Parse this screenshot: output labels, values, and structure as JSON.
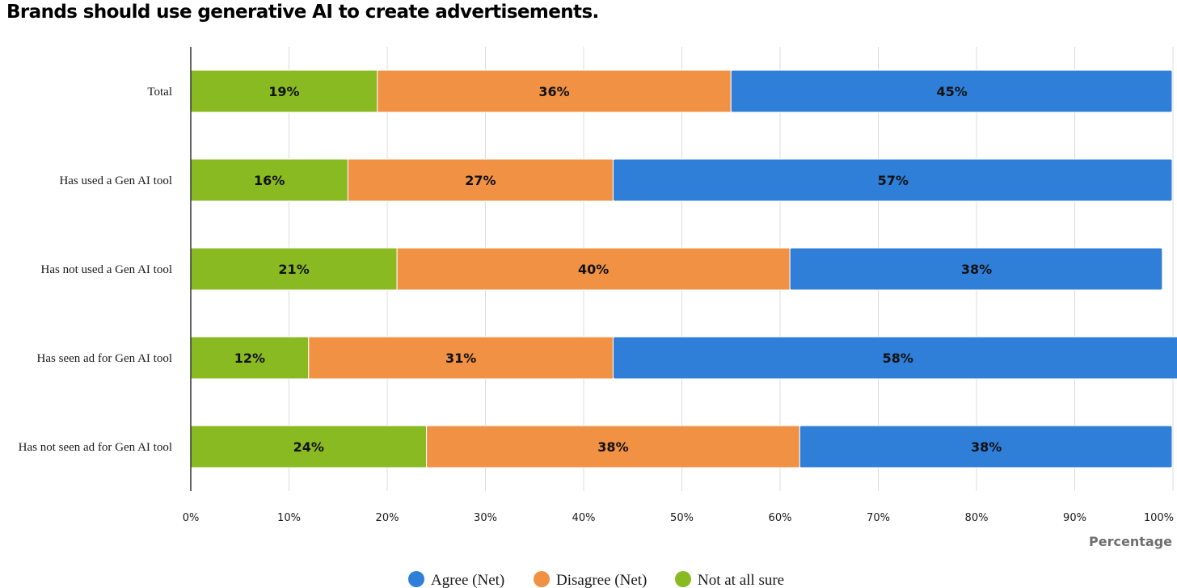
{
  "title": "Brands should use generative AI to create advertisements.",
  "chart_data": {
    "type": "bar",
    "orientation": "horizontal",
    "stacked": true,
    "title": "Brands should use generative AI to create advertisements.",
    "xlabel": "Percentage",
    "ylabel": "",
    "xlim": [
      0,
      100
    ],
    "x_ticks": [
      "0%",
      "10%",
      "20%",
      "30%",
      "40%",
      "50%",
      "60%",
      "70%",
      "80%",
      "90%",
      "100%"
    ],
    "categories": [
      "Total",
      "Has used a Gen AI tool",
      "Has not used a Gen AI tool",
      "Has seen ad for Gen AI tool",
      "Has not seen ad for Gen AI tool"
    ],
    "series": [
      {
        "name": "Not at all sure",
        "color": "#8aba22",
        "values": [
          19,
          16,
          21,
          12,
          24
        ],
        "labels": [
          "19%",
          "16%",
          "21%",
          "12%",
          "24%"
        ]
      },
      {
        "name": "Disagree (Net)",
        "color": "#f09144",
        "values": [
          36,
          27,
          40,
          31,
          38
        ],
        "labels": [
          "36%",
          "27%",
          "40%",
          "31%",
          "38%"
        ]
      },
      {
        "name": "Agree (Net)",
        "color": "#2f7fd9",
        "values": [
          45,
          57,
          38,
          58,
          38
        ],
        "labels": [
          "45%",
          "57%",
          "38%",
          "58%",
          "38%"
        ]
      }
    ],
    "legend": {
      "position": "bottom-center",
      "items": [
        {
          "label": "Agree (Net)",
          "color": "#2f7fd9"
        },
        {
          "label": "Disagree (Net)",
          "color": "#f09144"
        },
        {
          "label": "Not at all sure",
          "color": "#8aba22"
        }
      ]
    },
    "grid": true
  }
}
